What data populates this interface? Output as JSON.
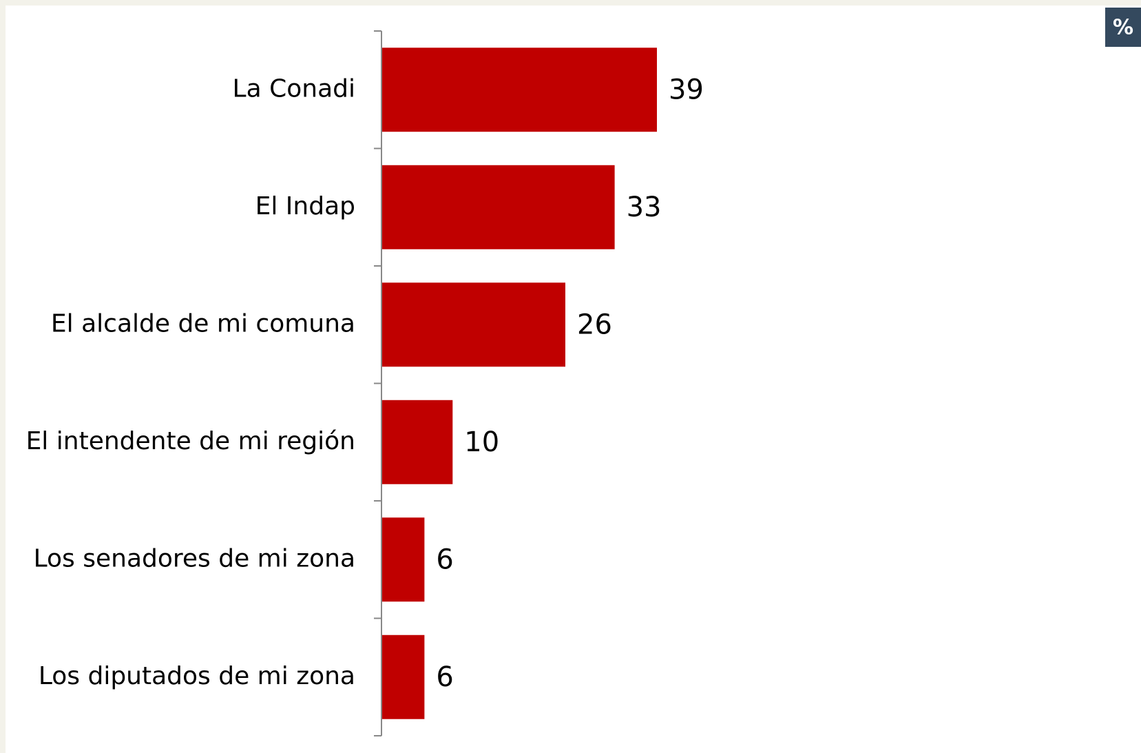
{
  "chart_data": {
    "type": "bar",
    "orientation": "horizontal",
    "unit": "%",
    "categories": [
      "La Conadi",
      "El Indap",
      "El alcalde de mi comuna",
      "El intendente de mi región",
      "Los senadores de mi zona",
      "Los diputados de mi zona"
    ],
    "values": [
      39,
      33,
      26,
      10,
      6,
      6
    ],
    "color": "#c00000"
  }
}
